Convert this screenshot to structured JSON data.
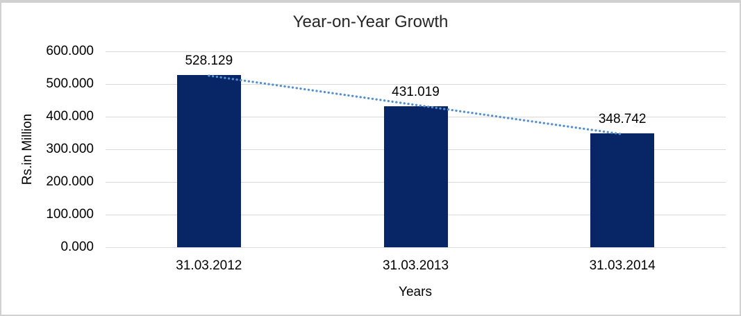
{
  "chart_data": {
    "type": "bar",
    "title": "Year-on-Year Growth",
    "categories": [
      "31.03.2012",
      "31.03.2013",
      "31.03.2014"
    ],
    "values": [
      528.129,
      431.019,
      348.742
    ],
    "data_labels": [
      "528.129",
      "431.019",
      "348.742"
    ],
    "xlabel": "Years",
    "ylabel": "Rs.in Million",
    "ylim": [
      0,
      600
    ],
    "ytick_interval": 100,
    "ytick_labels": [
      "0.000",
      "100.000",
      "200.000",
      "300.000",
      "400.000",
      "500.000",
      "600.000"
    ],
    "grid": true,
    "legend": "none",
    "trendline": {
      "type": "linear",
      "style": "dotted",
      "color": "#5490d0"
    },
    "colors": {
      "bar": "#082565",
      "gridline": "#d9d9d9",
      "text": "#000000",
      "title": "#262626",
      "frame_border": "#d1d1d1"
    }
  }
}
